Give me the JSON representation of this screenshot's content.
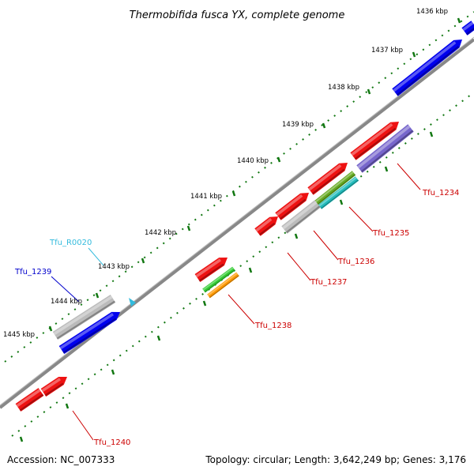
{
  "title": "Thermobifida fusca YX, complete genome",
  "accession": "Accession: NC_007333",
  "summary": "Topology: circular; Length: 3,642,249 bp; Genes: 3,176",
  "kbp_labels": [
    "1436 kbp",
    "1437 kbp",
    "1438 kbp",
    "1439 kbp",
    "1440 kbp",
    "1441 kbp",
    "1442 kbp",
    "1443 kbp",
    "1444 kbp",
    "1445 kbp"
  ],
  "gene_labels": [
    {
      "name": "Tfu_1234",
      "color": "#cc0000"
    },
    {
      "name": "Tfu_1235",
      "color": "#cc0000"
    },
    {
      "name": "Tfu_1236",
      "color": "#cc0000"
    },
    {
      "name": "Tfu_1237",
      "color": "#cc0000"
    },
    {
      "name": "Tfu_1238",
      "color": "#cc0000"
    },
    {
      "name": "Tfu_1240",
      "color": "#cc0000"
    },
    {
      "name": "Tfu_1239",
      "color": "#0000cc"
    },
    {
      "name": "Tfu_R0020",
      "color": "#33bbdd"
    }
  ],
  "feature_colors": {
    "cds": "#ee1111",
    "other": "#bbbbbb",
    "blue": "#0000ee",
    "purple": "#7766cc",
    "green": "#66aa22",
    "cyan": "#22bbbb",
    "bright_green": "#33cc33",
    "orange": "#ff9900",
    "backbone": "#888888",
    "ticks": "#117711"
  }
}
